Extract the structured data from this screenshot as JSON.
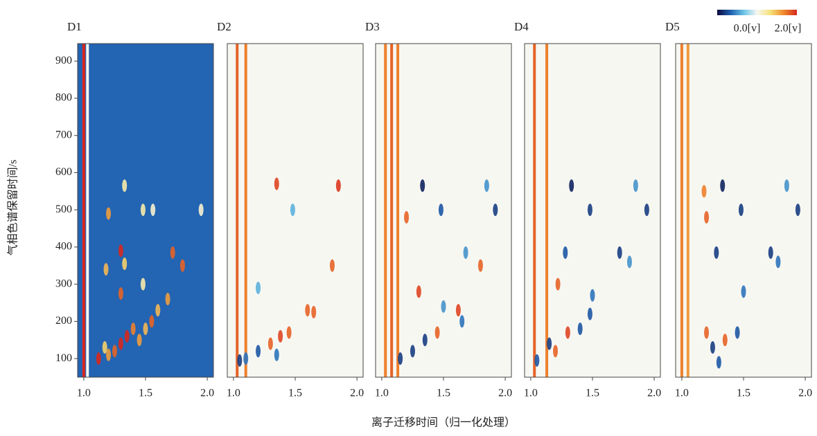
{
  "xlabel": "离子迁移时间（归一化处理）",
  "ylabel": "气相色谱保留时间/s",
  "colorbar": {
    "lim": [
      0,
      2
    ],
    "colors": [
      "#0a0a3c",
      "#1f5fb0",
      "#6ac4e6",
      "#f7f7f2",
      "#f5e27a",
      "#ef8a2d",
      "#d6281e"
    ],
    "ticks": [
      {
        "value": 0,
        "label": "0.0[v]"
      },
      {
        "value": 2,
        "label": "2.0[v]"
      }
    ]
  },
  "chart_data": [
    {
      "type": "heatmap",
      "title": "D1",
      "background": 0.35,
      "xlim": [
        0.95,
        2.05
      ],
      "xticks": [
        {
          "value": 1,
          "label": "1.0"
        },
        {
          "value": 1.5,
          "label": "1.5"
        },
        {
          "value": 2,
          "label": "2.0"
        }
      ],
      "ylim": [
        50,
        947
      ],
      "yticks": [
        100,
        200,
        300,
        400,
        500,
        600,
        700,
        800,
        900
      ],
      "bands": {
        "x": [
          1.0,
          1.03
        ],
        "values": [
          2,
          1.0
        ]
      },
      "peaks": {
        "x": [
          1.33,
          1.2,
          1.48,
          1.56,
          1.95,
          1.3,
          1.72,
          1.8,
          1.33,
          1.18,
          1.3,
          1.48,
          1.68,
          1.6,
          1.55,
          1.4,
          1.35,
          1.3,
          1.25,
          1.12,
          1.2,
          1.17,
          1.5,
          1.45
        ],
        "y": [
          565,
          490,
          500,
          500,
          500,
          390,
          385,
          350,
          355,
          340,
          275,
          300,
          260,
          230,
          200,
          180,
          160,
          140,
          120,
          100,
          110,
          130,
          180,
          150
        ],
        "values": [
          1.2,
          1.6,
          1.2,
          1.1,
          1.1,
          2,
          1.8,
          1.8,
          1.4,
          1.5,
          1.8,
          1.2,
          1.6,
          1.5,
          1.8,
          1.7,
          2,
          2,
          1.8,
          2,
          1.6,
          1.4,
          1.5,
          1.6
        ]
      }
    },
    {
      "type": "heatmap",
      "title": "D2",
      "background": 1.0,
      "xlim": [
        0.95,
        2.05
      ],
      "xticks": [
        {
          "value": 1,
          "label": "1.0"
        },
        {
          "value": 1.5,
          "label": "1.5"
        },
        {
          "value": 2,
          "label": "2.0"
        }
      ],
      "ylim": [
        50,
        947
      ],
      "bands": {
        "x": [
          1.03,
          1.1
        ],
        "values": [
          1.8,
          1.7
        ]
      },
      "peaks": {
        "x": [
          1.35,
          1.85,
          1.8,
          1.48,
          1.6,
          1.65,
          1.45,
          1.38,
          1.3,
          1.2,
          1.1,
          1.35,
          1.05,
          1.2
        ],
        "y": [
          570,
          565,
          350,
          500,
          230,
          225,
          170,
          160,
          140,
          120,
          100,
          110,
          95,
          290
        ],
        "values": [
          1.9,
          1.95,
          1.8,
          0.6,
          1.8,
          1.8,
          1.8,
          1.9,
          1.8,
          0.3,
          0.4,
          0.4,
          0.2,
          0.6
        ]
      }
    },
    {
      "type": "heatmap",
      "title": "D3",
      "background": 1.0,
      "xlim": [
        0.95,
        2.05
      ],
      "xticks": [
        {
          "value": 1,
          "label": "1.0"
        },
        {
          "value": 1.5,
          "label": "1.5"
        },
        {
          "value": 2,
          "label": "2.0"
        }
      ],
      "ylim": [
        50,
        947
      ],
      "bands": {
        "x": [
          1.03,
          1.08,
          1.13
        ],
        "values": [
          1.7,
          1.8,
          1.7
        ]
      },
      "peaks": {
        "x": [
          1.33,
          1.85,
          1.48,
          1.92,
          1.2,
          1.68,
          1.8,
          1.3,
          1.62,
          1.5,
          1.45,
          1.35,
          1.25,
          1.15,
          1.65
        ],
        "y": [
          565,
          565,
          500,
          500,
          480,
          385,
          350,
          280,
          230,
          240,
          170,
          150,
          120,
          100,
          200
        ],
        "values": [
          0.1,
          0.5,
          0.3,
          0.2,
          1.8,
          0.5,
          1.8,
          1.9,
          1.9,
          0.5,
          1.8,
          0.2,
          0.2,
          0.2,
          0.4
        ]
      }
    },
    {
      "type": "heatmap",
      "title": "D4",
      "background": 1.0,
      "xlim": [
        0.95,
        2.05
      ],
      "xticks": [
        {
          "value": 1,
          "label": "1.0"
        },
        {
          "value": 1.5,
          "label": "1.5"
        },
        {
          "value": 2,
          "label": "2.0"
        }
      ],
      "ylim": [
        50,
        947
      ],
      "bands": {
        "x": [
          1.03,
          1.13
        ],
        "values": [
          1.8,
          1.7
        ]
      },
      "peaks": {
        "x": [
          1.33,
          1.85,
          1.48,
          1.94,
          1.28,
          1.72,
          1.5,
          1.48,
          1.4,
          1.3,
          1.15,
          1.2,
          1.05,
          1.8,
          1.22
        ],
        "y": [
          565,
          565,
          500,
          500,
          385,
          385,
          270,
          220,
          180,
          170,
          140,
          120,
          95,
          360,
          300
        ],
        "values": [
          0.1,
          0.5,
          0.2,
          0.2,
          0.3,
          0.2,
          0.4,
          0.3,
          0.3,
          1.9,
          0.2,
          1.8,
          0.3,
          0.5,
          1.8
        ]
      }
    },
    {
      "type": "heatmap",
      "title": "D5",
      "background": 1.0,
      "xlim": [
        0.95,
        2.05
      ],
      "xticks": [
        {
          "value": 1,
          "label": "1.0"
        },
        {
          "value": 1.5,
          "label": "1.5"
        },
        {
          "value": 2,
          "label": "2.0"
        }
      ],
      "ylim": [
        50,
        947
      ],
      "bands": {
        "x": [
          1.0,
          1.05
        ],
        "values": [
          1.7,
          1.6
        ]
      },
      "peaks": {
        "x": [
          1.33,
          1.85,
          1.48,
          1.94,
          1.28,
          1.72,
          1.18,
          1.2,
          1.78,
          1.5,
          1.45,
          1.35,
          1.25,
          1.3,
          1.2
        ],
        "y": [
          565,
          565,
          500,
          500,
          385,
          385,
          550,
          480,
          360,
          280,
          170,
          150,
          130,
          90,
          170
        ],
        "values": [
          0.1,
          0.5,
          0.2,
          0.2,
          0.2,
          0.2,
          1.7,
          1.8,
          0.4,
          0.4,
          0.3,
          1.8,
          0.2,
          0.3,
          1.8
        ]
      }
    }
  ]
}
